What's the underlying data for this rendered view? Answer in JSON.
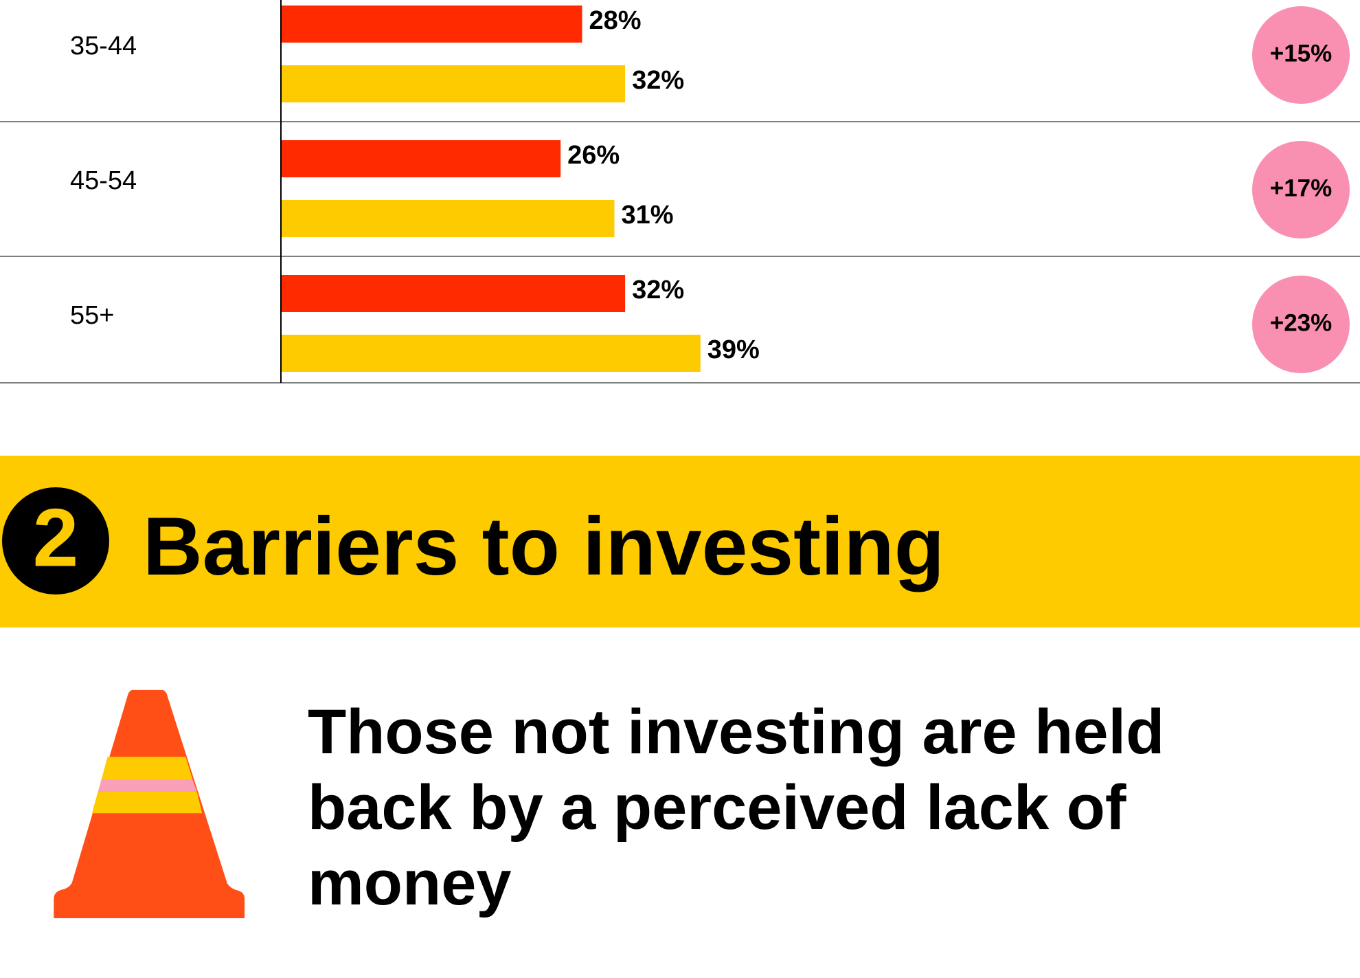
{
  "chart_data": {
    "type": "bar",
    "orientation": "horizontal",
    "categories": [
      "35-44",
      "45-54",
      "55+"
    ],
    "series": [
      {
        "color": "#ff2a00",
        "values": [
          28,
          26,
          32
        ],
        "value_labels": [
          "28%",
          "26%",
          "32%"
        ]
      },
      {
        "color": "#fecb00",
        "values": [
          32,
          31,
          39
        ],
        "value_labels": [
          "32%",
          "31%",
          "39%"
        ]
      }
    ],
    "xlim": [
      0,
      100
    ],
    "badges": [
      "+15%",
      "+17%",
      "+23%"
    ],
    "badge_color": "#f98fb1"
  },
  "section": {
    "number": "2",
    "title": "Barriers to investing",
    "color": "#fecb00",
    "headline": [
      "Those not investing are held",
      "back by a perceived lack of",
      "money"
    ]
  }
}
